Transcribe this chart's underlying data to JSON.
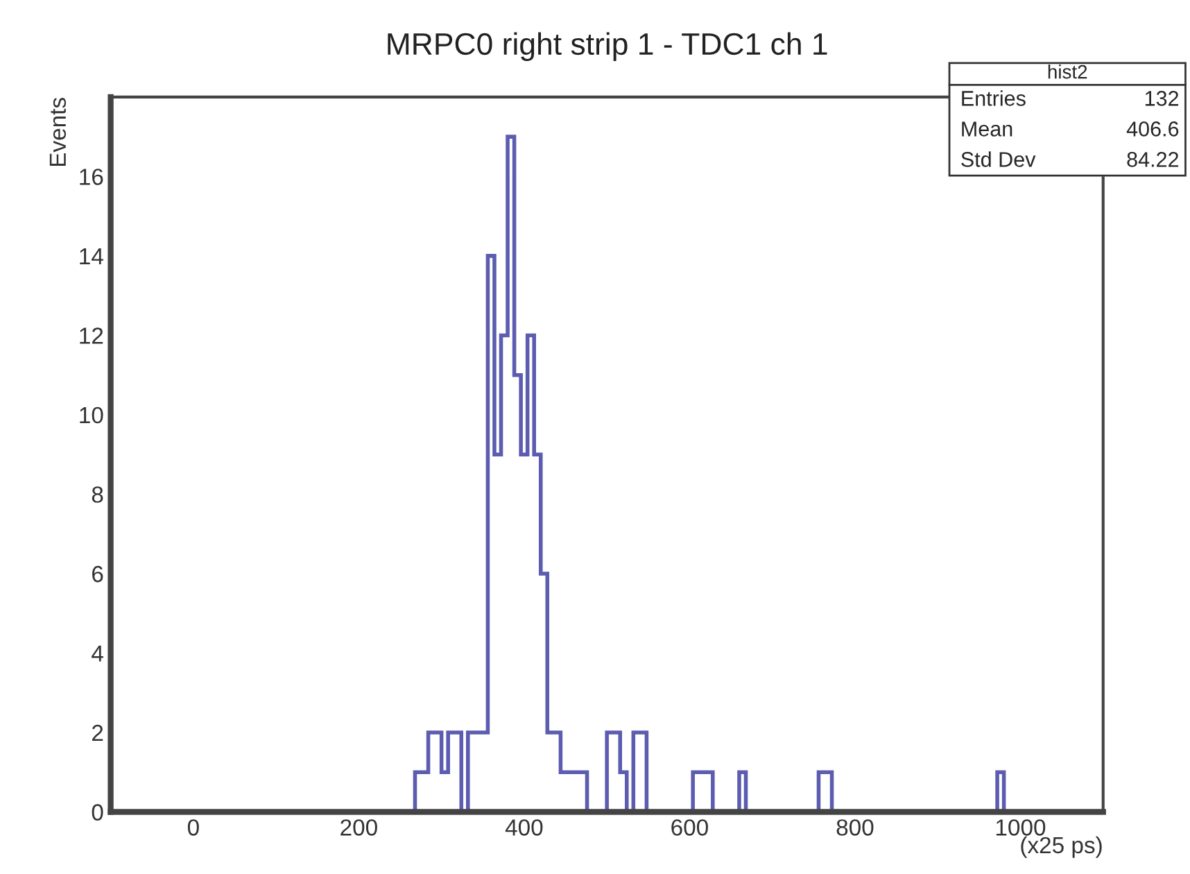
{
  "chart_data": {
    "type": "histogram",
    "title": "MRPC0 right strip 1 - TDC1 ch 1",
    "xlabel": "(x25 ps)",
    "ylabel": "Events",
    "bins": [
      268,
      276,
      284,
      292,
      300,
      308,
      316,
      324,
      332,
      340,
      348,
      356,
      364,
      372,
      380,
      388,
      396,
      404,
      412,
      420,
      428,
      436,
      444,
      452,
      460,
      468,
      476,
      500,
      508,
      516,
      524,
      532,
      540,
      548,
      604,
      612,
      620,
      628,
      660,
      668,
      756,
      764,
      772,
      972,
      980
    ],
    "values": [
      1,
      1,
      2,
      2,
      1,
      2,
      2,
      0,
      2,
      2,
      2,
      14,
      9,
      12,
      17,
      11,
      9,
      12,
      9,
      6,
      2,
      2,
      1,
      1,
      1,
      1,
      0,
      2,
      2,
      1,
      0,
      2,
      2,
      0,
      1,
      1,
      1,
      0,
      1,
      0,
      1,
      1,
      0,
      1
    ],
    "color": "#5c5cb0",
    "xlim": [
      -100,
      1100
    ],
    "xticks": [
      0,
      200,
      400,
      600,
      800,
      1000
    ],
    "ylim": [
      0,
      18
    ],
    "yticks": [
      0,
      2,
      4,
      6,
      8,
      10,
      12,
      14,
      16
    ],
    "grid": false,
    "annotations": [
      "hist2",
      "Entries",
      "132",
      "Mean",
      "406.6",
      "Std Dev",
      "84.22"
    ]
  }
}
